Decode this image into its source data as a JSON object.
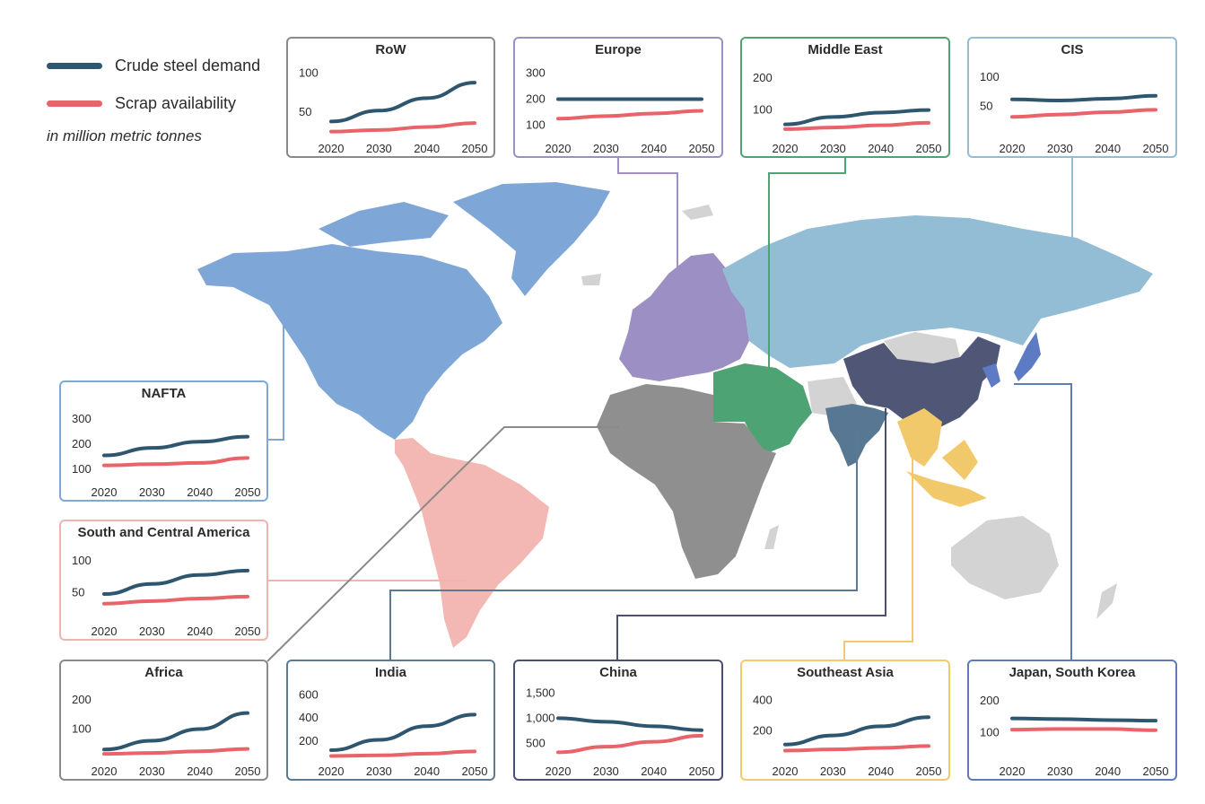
{
  "legend": {
    "demand_label": "Crude steel demand",
    "scrap_label": "Scrap availability",
    "unit_note": "in million metric tonnes",
    "demand_color": "#2e566f",
    "scrap_color": "#e8646a"
  },
  "regions": [
    {
      "id": "row",
      "title": "RoW",
      "color": "#8a8a8a",
      "map_color": null,
      "chart_data": {
        "type": "line",
        "x": [
          2020,
          2030,
          2040,
          2050
        ],
        "yticks": [
          50,
          100
        ],
        "ylim": [
          20,
          110
        ],
        "series": [
          {
            "name": "Crude steel demand",
            "values": [
              38,
              52,
              68,
              88
            ]
          },
          {
            "name": "Scrap availability",
            "values": [
              25,
              27,
              31,
              36
            ]
          }
        ]
      }
    },
    {
      "id": "europe",
      "title": "Europe",
      "color": "#9d8fc2",
      "map_color": "#9b8fc4",
      "chart_data": {
        "type": "line",
        "x": [
          2020,
          2030,
          2040,
          2050
        ],
        "yticks": [
          100,
          200,
          300
        ],
        "ylim": [
          60,
          330
        ],
        "series": [
          {
            "name": "Crude steel demand",
            "values": [
              200,
              200,
              200,
              200
            ]
          },
          {
            "name": "Scrap availability",
            "values": [
              125,
              135,
              145,
              155
            ]
          }
        ]
      }
    },
    {
      "id": "middle-east",
      "title": "Middle East",
      "color": "#4ea374",
      "map_color": "#4ea374",
      "chart_data": {
        "type": "line",
        "x": [
          2020,
          2030,
          2040,
          2050
        ],
        "yticks": [
          100,
          200
        ],
        "ylim": [
          20,
          240
        ],
        "series": [
          {
            "name": "Crude steel demand",
            "values": [
              55,
              78,
              92,
              100
            ]
          },
          {
            "name": "Scrap availability",
            "values": [
              40,
              45,
              52,
              60
            ]
          }
        ]
      }
    },
    {
      "id": "cis",
      "title": "CIS",
      "color": "#92bdd4",
      "map_color": "#92bdd4",
      "chart_data": {
        "type": "line",
        "x": [
          2020,
          2030,
          2040,
          2050
        ],
        "yticks": [
          50,
          100
        ],
        "ylim": [
          0,
          120
        ],
        "series": [
          {
            "name": "Crude steel demand",
            "values": [
              62,
              60,
              63,
              68
            ]
          },
          {
            "name": "Scrap availability",
            "values": [
              32,
              36,
              40,
              44
            ]
          }
        ]
      }
    },
    {
      "id": "nafta",
      "title": "NAFTA",
      "color": "#7ea9d6",
      "map_color": "#7ea6d6",
      "chart_data": {
        "type": "line",
        "x": [
          2020,
          2030,
          2040,
          2050
        ],
        "yticks": [
          100,
          200,
          300
        ],
        "ylim": [
          60,
          340
        ],
        "series": [
          {
            "name": "Crude steel demand",
            "values": [
              155,
              185,
              210,
              230
            ]
          },
          {
            "name": "Scrap availability",
            "values": [
              115,
              120,
              125,
              145
            ]
          }
        ]
      }
    },
    {
      "id": "south-central-america",
      "title": "South and Central America",
      "color": "#f0b3ad",
      "map_color": "#f3b8b3",
      "chart_data": {
        "type": "line",
        "x": [
          2020,
          2030,
          2040,
          2050
        ],
        "yticks": [
          50,
          100
        ],
        "ylim": [
          10,
          120
        ],
        "series": [
          {
            "name": "Crude steel demand",
            "values": [
              48,
              64,
              78,
              85
            ]
          },
          {
            "name": "Scrap availability",
            "values": [
              33,
              37,
              41,
              44
            ]
          }
        ]
      }
    },
    {
      "id": "africa",
      "title": "Africa",
      "color": "#8a8a8a",
      "map_color": "#8f8f8f",
      "chart_data": {
        "type": "line",
        "x": [
          2020,
          2030,
          2040,
          2050
        ],
        "yticks": [
          100,
          200
        ],
        "ylim": [
          0,
          240
        ],
        "series": [
          {
            "name": "Crude steel demand",
            "values": [
              30,
              60,
              100,
              155
            ]
          },
          {
            "name": "Scrap availability",
            "values": [
              15,
              18,
              24,
              32
            ]
          }
        ]
      }
    },
    {
      "id": "india",
      "title": "India",
      "color": "#5b7a95",
      "map_color": "#587792",
      "chart_data": {
        "type": "line",
        "x": [
          2020,
          2030,
          2040,
          2050
        ],
        "yticks": [
          200,
          400,
          600
        ],
        "ylim": [
          50,
          660
        ],
        "series": [
          {
            "name": "Crude steel demand",
            "values": [
              120,
              210,
              330,
              430
            ]
          },
          {
            "name": "Scrap availability",
            "values": [
              70,
              75,
              90,
              110
            ]
          }
        ]
      }
    },
    {
      "id": "china",
      "title": "China",
      "color": "#4c5070",
      "map_color": "#505676",
      "chart_data": {
        "type": "line",
        "x": [
          2020,
          2030,
          2040,
          2050
        ],
        "yticks": [
          500,
          1000,
          1500
        ],
        "ylim": [
          200,
          1600
        ],
        "series": [
          {
            "name": "Crude steel demand",
            "values": [
              1000,
              930,
              840,
              760
            ]
          },
          {
            "name": "Scrap availability",
            "values": [
              320,
              430,
              530,
              650
            ]
          }
        ]
      }
    },
    {
      "id": "southeast-asia",
      "title": "Southeast Asia",
      "color": "#f1ca6b",
      "map_color": "#f1c96a",
      "chart_data": {
        "type": "line",
        "x": [
          2020,
          2030,
          2040,
          2050
        ],
        "yticks": [
          200,
          400
        ],
        "ylim": [
          20,
          480
        ],
        "series": [
          {
            "name": "Crude steel demand",
            "values": [
              110,
              170,
              230,
              290
            ]
          },
          {
            "name": "Scrap availability",
            "values": [
              70,
              78,
              88,
              100
            ]
          }
        ]
      }
    },
    {
      "id": "japan-south-korea",
      "title": "Japan, South Korea",
      "color": "#5d7bb8",
      "map_color": "#5c7bc4",
      "chart_data": {
        "type": "line",
        "x": [
          2020,
          2030,
          2040,
          2050
        ],
        "yticks": [
          100,
          200
        ],
        "ylim": [
          20,
          240
        ],
        "series": [
          {
            "name": "Crude steel demand",
            "values": [
              145,
              143,
              140,
              138
            ]
          },
          {
            "name": "Scrap availability",
            "values": [
              110,
              112,
              112,
              108
            ]
          }
        ]
      }
    }
  ]
}
